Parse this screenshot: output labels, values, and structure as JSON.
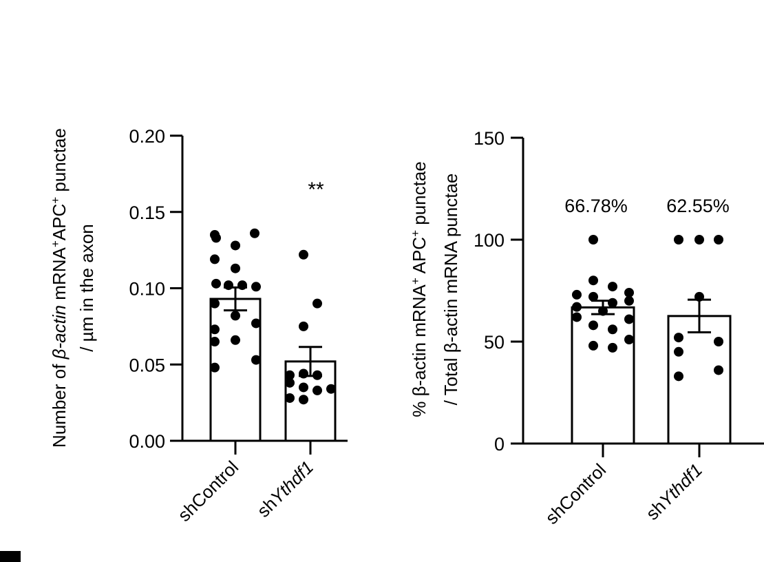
{
  "chart_data": [
    {
      "type": "bar",
      "panel": "left",
      "ylabel": {
        "line1": {
          "pre": "Number of ",
          "italic": "β-actin",
          "mid1": " mRNA",
          "sup1": "+",
          "mid2": "APC",
          "sup2": "+",
          "post": " punctae"
        },
        "line2": "/ µm in the axon"
      },
      "ylim": [
        0,
        0.2
      ],
      "yticks": [
        "0.00",
        "0.05",
        "0.10",
        "0.15",
        "0.20"
      ],
      "yticks_values": [
        0,
        0.05,
        0.1,
        0.15,
        0.2
      ],
      "categories": [
        {
          "prefix": "sh",
          "name": "Control",
          "italic": false
        },
        {
          "prefix": "sh",
          "name": "Ythdf1",
          "italic": true
        }
      ],
      "means": [
        0.093,
        0.052
      ],
      "sem": [
        0.0075,
        0.0095
      ],
      "points": [
        [
          0.135,
          0.136,
          0.128,
          0.133,
          0.119,
          0.113,
          0.103,
          0.102,
          0.102,
          0.101,
          0.09,
          0.082,
          0.077,
          0.073,
          0.066,
          0.065,
          0.053,
          0.048
        ],
        [
          0.122,
          0.09,
          0.075,
          0.043,
          0.044,
          0.043,
          0.038,
          0.035,
          0.034,
          0.033,
          0.028,
          0.027
        ]
      ],
      "annotation": "**",
      "bar_labels": [
        "",
        ""
      ]
    },
    {
      "type": "bar",
      "panel": "right",
      "ylabel": {
        "line1": {
          "pre": "% β-actin mRNA",
          "sup1": "+",
          "mid2": " APC",
          "sup2": "+",
          "post": " punctae"
        },
        "line2": "/ Total β-actin mRNA punctae"
      },
      "ylim": [
        0,
        150
      ],
      "yticks": [
        "0",
        "50",
        "100",
        "150"
      ],
      "yticks_values": [
        0,
        50,
        100,
        150
      ],
      "categories": [
        {
          "prefix": "sh",
          "name": "Control",
          "italic": false
        },
        {
          "prefix": "sh",
          "name": "Ythdf1",
          "italic": true
        }
      ],
      "means": [
        66.78,
        62.55
      ],
      "sem": [
        3.3,
        8
      ],
      "points": [
        [
          100,
          80,
          77,
          74,
          73,
          72,
          70,
          69,
          67,
          65,
          62,
          61,
          58,
          56,
          51,
          48,
          47
        ],
        [
          100,
          100,
          100,
          72,
          52,
          50,
          45,
          36,
          33
        ]
      ],
      "annotation": "",
      "bar_labels": [
        "66.78%",
        "62.55%"
      ]
    }
  ]
}
